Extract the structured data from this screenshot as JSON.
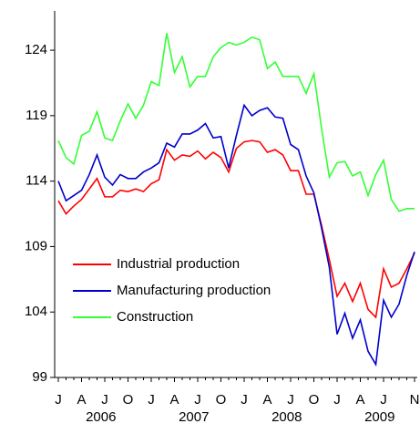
{
  "chart_data": {
    "type": "line",
    "categories": [
      "J",
      null,
      null,
      "A",
      null,
      null,
      "J",
      null,
      null,
      "O",
      null,
      null,
      "J",
      null,
      null,
      "A",
      null,
      null,
      "J",
      null,
      null,
      "O",
      null,
      null,
      "J",
      null,
      null,
      "A",
      null,
      null,
      "J",
      null,
      null,
      "O",
      null,
      null,
      "J",
      null,
      null,
      "A",
      null,
      null,
      "J",
      null,
      null,
      null,
      "N"
    ],
    "years": [
      "2006",
      "2007",
      "2008",
      "2009"
    ],
    "ylim": [
      99,
      127
    ],
    "yticks": [
      99,
      104,
      109,
      114,
      119,
      124
    ],
    "legend": "lower left",
    "series": [
      {
        "name": "Industrial production",
        "color": "#ff0000",
        "values": [
          112.5,
          111.5,
          112.1,
          112.6,
          113.4,
          114.2,
          112.8,
          112.8,
          113.3,
          113.2,
          113.4,
          113.2,
          113.8,
          114.1,
          116.4,
          115.6,
          116.0,
          115.9,
          116.3,
          115.7,
          116.2,
          115.8,
          114.7,
          116.5,
          117.0,
          117.1,
          117.0,
          116.2,
          116.4,
          116.0,
          114.8,
          114.8,
          113.0,
          113.0,
          110.6,
          108.0,
          105.2,
          106.2,
          104.8,
          106.2,
          104.2,
          103.6,
          107.3,
          105.9,
          106.2,
          107.3,
          108.5
        ]
      },
      {
        "name": "Manufacturing production",
        "color": "#0000cc",
        "values": [
          114.0,
          112.5,
          112.9,
          113.3,
          114.5,
          116.0,
          114.3,
          113.7,
          114.5,
          114.2,
          114.2,
          114.7,
          115.0,
          115.4,
          116.9,
          116.6,
          117.6,
          117.6,
          117.9,
          118.4,
          117.3,
          117.4,
          115.0,
          117.5,
          119.8,
          119.0,
          119.4,
          119.6,
          118.9,
          118.8,
          116.8,
          116.4,
          114.4,
          113.1,
          110.4,
          107.4,
          102.3,
          103.9,
          102.0,
          103.4,
          101.0,
          100.0,
          104.9,
          103.6,
          104.6,
          106.8,
          108.6
        ]
      },
      {
        "name": "Construction",
        "color": "#33ff33",
        "values": [
          117.1,
          115.8,
          115.3,
          117.5,
          117.8,
          119.3,
          117.3,
          117.1,
          118.6,
          119.9,
          118.8,
          119.8,
          121.6,
          121.3,
          125.3,
          122.3,
          123.5,
          121.2,
          122.0,
          122.0,
          123.5,
          124.2,
          124.6,
          124.4,
          124.6,
          125.0,
          124.8,
          122.6,
          123.1,
          122.0,
          122.0,
          122.0,
          120.7,
          122.2,
          118.0,
          114.3,
          115.4,
          115.5,
          114.4,
          114.7,
          112.9,
          114.5,
          115.6,
          112.6,
          111.7,
          111.9,
          111.9
        ]
      }
    ]
  }
}
